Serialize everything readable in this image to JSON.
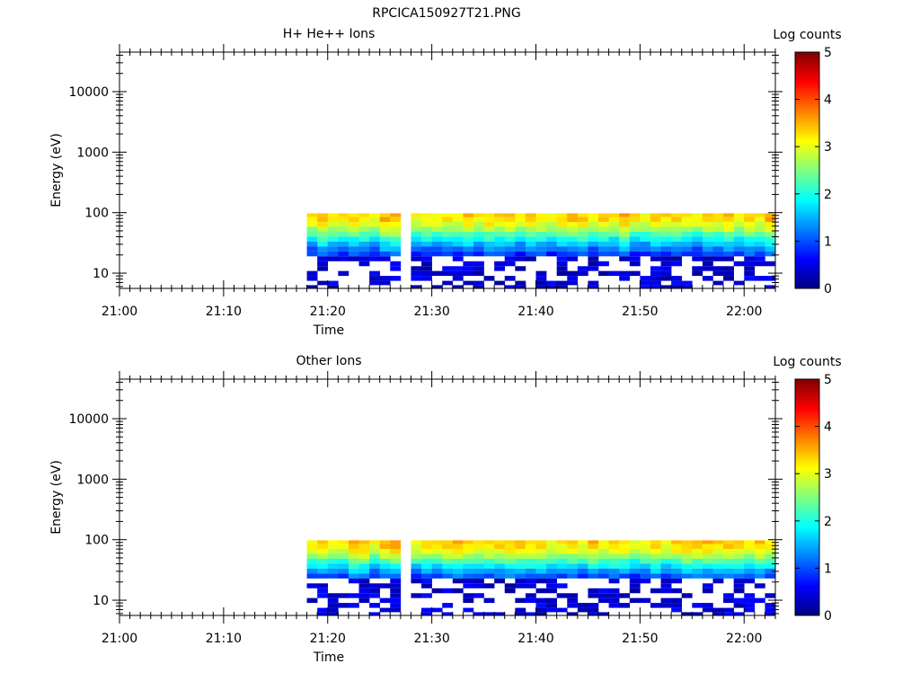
{
  "figure_title": "RPCICA150927T21.PNG",
  "colors": {
    "background": "#ffffff",
    "axis": "#000000",
    "no_data": "#ffffff"
  },
  "colormap": "jet",
  "chart_data": [
    {
      "type": "heatmap",
      "title": "H+ He++ Ions",
      "xlabel": "Time",
      "ylabel": "Energy (eV)",
      "colorbar_label": "Log counts",
      "x_range": [
        "21:00",
        "22:03"
      ],
      "x_ticks": [
        "21:00",
        "21:10",
        "21:20",
        "21:30",
        "21:40",
        "21:50",
        "22:00"
      ],
      "y_scale": "log",
      "y_range": [
        5.6,
        45000
      ],
      "y_ticks": [
        "10",
        "100",
        "1000",
        "10000"
      ],
      "color_range": [
        0,
        5
      ],
      "colorbar_ticks": [
        "0",
        "1",
        "2",
        "3",
        "4",
        "5"
      ],
      "data_start": "21:18",
      "data_gap": [
        "21:27",
        "21:28"
      ],
      "data_end": "22:03",
      "energy_bins": [
        93,
        77,
        64,
        53,
        44,
        36.5,
        30.3,
        25.1,
        20.8,
        17.3,
        14.3,
        11.9,
        9.9,
        8.2,
        6.8,
        5.9
      ],
      "profile": [
        3.3,
        3.25,
        3.05,
        2.75,
        2.35,
        1.95,
        1.6,
        1.25,
        0.95,
        0.6,
        0.3,
        0.1,
        0.05,
        0.02,
        0.01,
        0.01
      ],
      "sparse_start_bin": 9,
      "legend": "none",
      "grid": false
    },
    {
      "type": "heatmap",
      "title": "Other Ions",
      "xlabel": "Time",
      "ylabel": "Energy (eV)",
      "colorbar_label": "Log counts",
      "x_range": [
        "21:00",
        "22:03"
      ],
      "x_ticks": [
        "21:00",
        "21:10",
        "21:20",
        "21:30",
        "21:40",
        "21:50",
        "22:00"
      ],
      "y_scale": "log",
      "y_range": [
        5.6,
        45000
      ],
      "y_ticks": [
        "10",
        "100",
        "1000",
        "10000"
      ],
      "color_range": [
        0,
        5
      ],
      "colorbar_ticks": [
        "0",
        "1",
        "2",
        "3",
        "4",
        "5"
      ],
      "data_start": "21:18",
      "data_gap": [
        "21:27",
        "21:28"
      ],
      "data_end": "22:03",
      "energy_bins": [
        93,
        77,
        64,
        53,
        44,
        36.5,
        30.3,
        25.1,
        20.8,
        17.3,
        14.3,
        11.9,
        9.9,
        8.2,
        6.8,
        5.9
      ],
      "profile": [
        3.3,
        3.2,
        3.0,
        2.65,
        2.2,
        1.8,
        1.4,
        1.05,
        0.75,
        0.4,
        0.15,
        0.05,
        0.02,
        0.01,
        0.01,
        0.01
      ],
      "sparse_start_bin": 8,
      "legend": "none",
      "grid": false
    }
  ]
}
